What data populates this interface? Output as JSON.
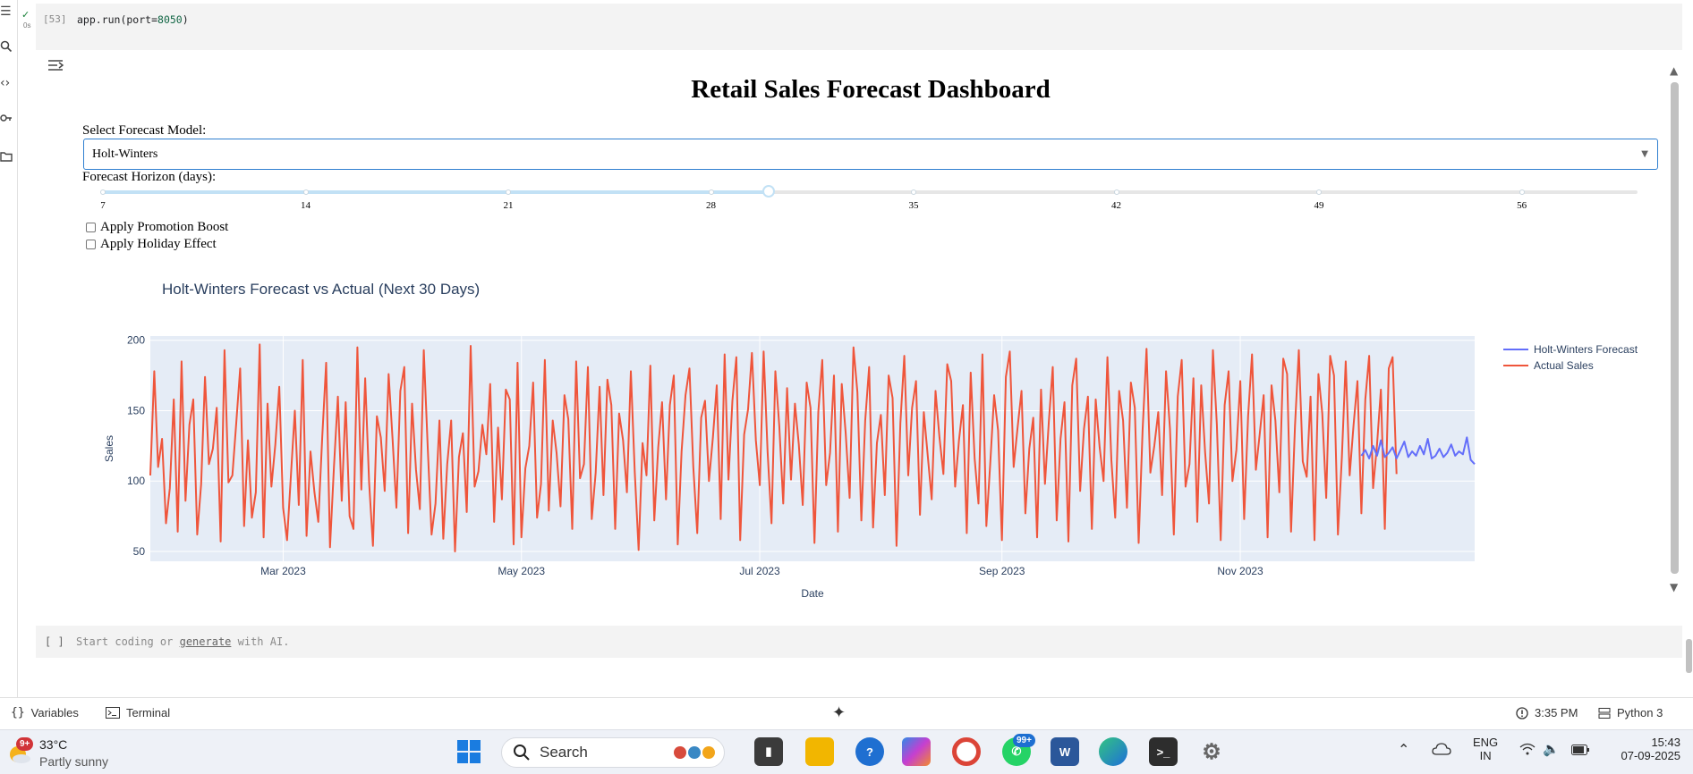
{
  "left_rail": {
    "icons": [
      "menu-icon",
      "search-icon",
      "code-icon",
      "key-icon",
      "folder-icon"
    ]
  },
  "code_cell": {
    "status_check": "✓",
    "exec_time": "0s",
    "exec_count": "[53]",
    "code_prefix": "app.run(port=",
    "code_number": "8050",
    "code_suffix": ")"
  },
  "dashboard": {
    "title": "Retail Sales Forecast Dashboard",
    "model_label": "Select Forecast Model:",
    "model_value": "Holt-Winters",
    "horizon_label": "Forecast Horizon (days):",
    "horizon_ticks": [
      "7",
      "14",
      "21",
      "28",
      "35",
      "42",
      "49",
      "56"
    ],
    "horizon_value": 30,
    "horizon_min": 7,
    "horizon_max": 60,
    "promotion_label": "Apply Promotion Boost",
    "holiday_label": "Apply Holiday Effect",
    "promotion_checked": false,
    "holiday_checked": false
  },
  "chart_data": {
    "type": "line",
    "title": "Holt-Winters Forecast vs Actual (Next 30 Days)",
    "xlabel": "Date",
    "ylabel": "Sales",
    "x_ticks": [
      "Mar 2023",
      "May 2023",
      "Jul 2023",
      "Sep 2023",
      "Nov 2023"
    ],
    "x_range": [
      "2023-01-26",
      "2023-12-31"
    ],
    "ylim": [
      43,
      203
    ],
    "y_ticks": [
      50,
      100,
      150,
      200
    ],
    "legend_position": "top-right",
    "grid": true,
    "series": [
      {
        "name": "Holt-Winters Forecast",
        "color": "#636efa",
        "start": "2023-12-02",
        "values": [
          118,
          122,
          116,
          125,
          118,
          129,
          117,
          120,
          124,
          116,
          122,
          128,
          117,
          121,
          118,
          125,
          119,
          130,
          116,
          118,
          123,
          117,
          120,
          126,
          118,
          121,
          119,
          131,
          115,
          112
        ]
      },
      {
        "name": "Actual Sales",
        "color": "#ef553b",
        "start": "2023-01-26",
        "values": [
          104,
          178,
          110,
          130,
          70,
          95,
          158,
          64,
          185,
          86,
          140,
          158,
          62,
          98,
          174,
          112,
          123,
          152,
          57,
          193,
          99,
          104,
          141,
          180,
          68,
          129,
          74,
          92,
          197,
          60,
          155,
          96,
          126,
          167,
          81,
          58,
          105,
          150,
          83,
          186,
          61,
          121,
          92,
          71,
          131,
          184,
          53,
          110,
          160,
          86,
          156,
          75,
          66,
          195,
          94,
          173,
          99,
          54,
          146,
          131,
          93,
          176,
          130,
          81,
          164,
          181,
          63,
          155,
          108,
          80,
          193,
          124,
          62,
          84,
          143,
          59,
          112,
          143,
          50,
          117,
          134,
          78,
          196,
          96,
          107,
          140,
          119,
          169,
          71,
          138,
          87,
          165,
          158,
          55,
          184,
          60,
          109,
          125,
          170,
          74,
          98,
          186,
          79,
          143,
          120,
          82,
          161,
          144,
          66,
          185,
          102,
          112,
          181,
          73,
          106,
          167,
          90,
          172,
          154,
          66,
          148,
          129,
          92,
          178,
          106,
          51,
          127,
          104,
          182,
          72,
          124,
          156,
          87,
          154,
          175,
          55,
          121,
          161,
          180,
          110,
          63,
          145,
          157,
          100,
          131,
          168,
          73,
          190,
          101,
          157,
          188,
          58,
          133,
          151,
          191,
          129,
          97,
          192,
          121,
          70,
          178,
          139,
          84,
          166,
          101,
          155,
          126,
          83,
          170,
          152,
          56,
          149,
          186,
          97,
          120,
          175,
          64,
          169,
          134,
          88,
          195,
          163,
          72,
          143,
          181,
          67,
          127,
          147,
          90,
          175,
          159,
          54,
          141,
          189,
          104,
          152,
          171,
          76,
          149,
          118,
          87,
          164,
          131,
          105,
          183,
          171,
          96,
          129,
          154,
          63,
          177,
          116,
          84,
          190,
          68,
          112,
          161,
          136,
          58,
          174,
          192,
          110,
          138,
          164,
          77,
          123,
          145,
          60,
          165,
          98,
          142,
          181,
          72,
          130,
          156,
          57,
          168,
          187,
          93,
          137,
          160,
          66,
          158,
          124,
          100,
          188,
          115,
          74,
          164,
          143,
          81,
          170,
          152,
          56,
          136,
          194,
          106,
          125,
          149,
          90,
          178,
          137,
          62,
          160,
          186,
          96,
          112,
          173,
          71,
          168,
          120,
          84,
          193,
          140,
          58,
          154,
          178,
          100,
          122,
          171,
          73,
          146,
          190,
          108,
          134,
          161,
          60,
          168,
          143,
          92,
          187,
          176,
          64,
          139,
          193,
          114,
          103,
          160,
          58,
          176,
          148,
          88,
          189,
          175,
          62,
          117,
          185,
          104,
          140,
          171,
          77,
          158,
          189,
          95,
          126,
          165,
          66,
          180,
          188,
          105
        ]
      }
    ]
  },
  "empty_cell": {
    "bracket": "[ ]",
    "hint_before": "Start coding or ",
    "hint_link": "generate",
    "hint_after": " with AI."
  },
  "status_bar": {
    "variables": "Variables",
    "terminal": "Terminal",
    "time": "3:35 PM",
    "kernel": "Python 3"
  },
  "taskbar": {
    "weather_badge": "9+",
    "temperature": "33°C",
    "weather": "Partly sunny",
    "search": "Search",
    "whatsapp_badge": "99+",
    "language": "ENG",
    "region": "IN",
    "clock_time": "15:43",
    "clock_date": "07-09-2025"
  }
}
